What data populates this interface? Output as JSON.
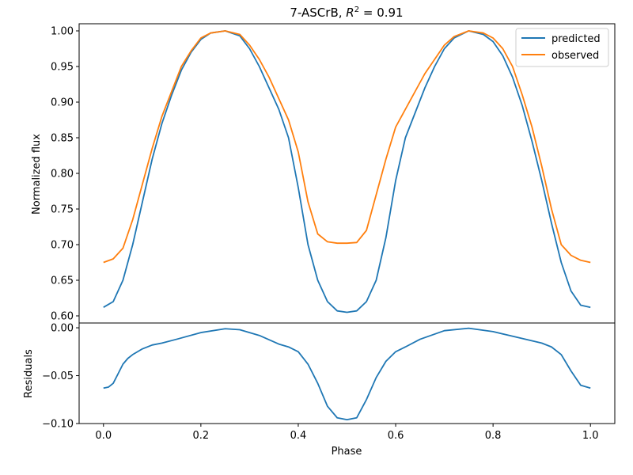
{
  "chart_data": {
    "type": "line",
    "title": "7-ASCrB, R² = 0.91",
    "title_parts": {
      "prefix": "7-ASCrB, ",
      "variable": "R",
      "superscript": "2",
      "suffix": " = 0.91"
    },
    "xlabel": "Phase",
    "xlim": [
      -0.05,
      1.05
    ],
    "x_ticks": [
      0.0,
      0.2,
      0.4,
      0.6,
      0.8,
      1.0
    ],
    "x_tick_labels": [
      "0.0",
      "0.2",
      "0.4",
      "0.6",
      "0.8",
      "1.0"
    ],
    "grid": false,
    "legend_location": "upper-right",
    "colors": {
      "predicted": "#1f77b4",
      "observed": "#ff7f0e",
      "residuals": "#1f77b4"
    },
    "panels": [
      {
        "name": "flux",
        "ylabel": "Normalized flux",
        "ylim": [
          0.59,
          1.01
        ],
        "y_ticks": [
          0.6,
          0.65,
          0.7,
          0.75,
          0.8,
          0.85,
          0.9,
          0.95,
          1.0
        ],
        "y_tick_labels": [
          "0.60",
          "0.65",
          "0.70",
          "0.75",
          "0.80",
          "0.85",
          "0.90",
          "0.95",
          "1.00"
        ],
        "series": [
          {
            "name": "predicted",
            "points": [
              [
                0.0,
                0.612
              ],
              [
                0.02,
                0.62
              ],
              [
                0.04,
                0.65
              ],
              [
                0.06,
                0.7
              ],
              [
                0.08,
                0.76
              ],
              [
                0.1,
                0.82
              ],
              [
                0.12,
                0.87
              ],
              [
                0.14,
                0.91
              ],
              [
                0.16,
                0.945
              ],
              [
                0.18,
                0.97
              ],
              [
                0.2,
                0.988
              ],
              [
                0.22,
                0.997
              ],
              [
                0.25,
                1.0
              ],
              [
                0.28,
                0.993
              ],
              [
                0.3,
                0.975
              ],
              [
                0.32,
                0.95
              ],
              [
                0.34,
                0.92
              ],
              [
                0.36,
                0.89
              ],
              [
                0.38,
                0.85
              ],
              [
                0.4,
                0.78
              ],
              [
                0.42,
                0.7
              ],
              [
                0.44,
                0.65
              ],
              [
                0.46,
                0.62
              ],
              [
                0.48,
                0.607
              ],
              [
                0.5,
                0.605
              ],
              [
                0.52,
                0.607
              ],
              [
                0.54,
                0.62
              ],
              [
                0.56,
                0.65
              ],
              [
                0.58,
                0.71
              ],
              [
                0.6,
                0.79
              ],
              [
                0.62,
                0.85
              ],
              [
                0.64,
                0.885
              ],
              [
                0.66,
                0.92
              ],
              [
                0.68,
                0.95
              ],
              [
                0.7,
                0.975
              ],
              [
                0.72,
                0.99
              ],
              [
                0.75,
                1.0
              ],
              [
                0.78,
                0.995
              ],
              [
                0.8,
                0.985
              ],
              [
                0.82,
                0.965
              ],
              [
                0.84,
                0.935
              ],
              [
                0.86,
                0.895
              ],
              [
                0.88,
                0.845
              ],
              [
                0.9,
                0.79
              ],
              [
                0.92,
                0.73
              ],
              [
                0.94,
                0.675
              ],
              [
                0.96,
                0.635
              ],
              [
                0.98,
                0.615
              ],
              [
                1.0,
                0.612
              ]
            ]
          },
          {
            "name": "observed",
            "points": [
              [
                0.0,
                0.675
              ],
              [
                0.02,
                0.68
              ],
              [
                0.04,
                0.695
              ],
              [
                0.06,
                0.735
              ],
              [
                0.08,
                0.785
              ],
              [
                0.1,
                0.835
              ],
              [
                0.12,
                0.88
              ],
              [
                0.14,
                0.915
              ],
              [
                0.16,
                0.95
              ],
              [
                0.18,
                0.972
              ],
              [
                0.2,
                0.99
              ],
              [
                0.22,
                0.997
              ],
              [
                0.25,
                1.0
              ],
              [
                0.28,
                0.995
              ],
              [
                0.3,
                0.98
              ],
              [
                0.32,
                0.96
              ],
              [
                0.34,
                0.935
              ],
              [
                0.36,
                0.905
              ],
              [
                0.38,
                0.875
              ],
              [
                0.4,
                0.83
              ],
              [
                0.42,
                0.76
              ],
              [
                0.44,
                0.715
              ],
              [
                0.46,
                0.704
              ],
              [
                0.48,
                0.702
              ],
              [
                0.5,
                0.702
              ],
              [
                0.52,
                0.703
              ],
              [
                0.54,
                0.72
              ],
              [
                0.56,
                0.77
              ],
              [
                0.58,
                0.82
              ],
              [
                0.6,
                0.865
              ],
              [
                0.62,
                0.89
              ],
              [
                0.64,
                0.915
              ],
              [
                0.66,
                0.94
              ],
              [
                0.68,
                0.96
              ],
              [
                0.7,
                0.98
              ],
              [
                0.72,
                0.992
              ],
              [
                0.75,
                1.0
              ],
              [
                0.78,
                0.997
              ],
              [
                0.8,
                0.99
              ],
              [
                0.82,
                0.975
              ],
              [
                0.84,
                0.95
              ],
              [
                0.86,
                0.91
              ],
              [
                0.88,
                0.865
              ],
              [
                0.9,
                0.81
              ],
              [
                0.92,
                0.75
              ],
              [
                0.94,
                0.7
              ],
              [
                0.96,
                0.685
              ],
              [
                0.98,
                0.678
              ],
              [
                1.0,
                0.675
              ]
            ]
          }
        ]
      },
      {
        "name": "residuals",
        "ylabel": "Residuals",
        "ylim": [
          -0.1,
          0.005
        ],
        "y_ticks": [
          -0.1,
          -0.05,
          0.0
        ],
        "y_tick_labels": [
          "−0.10",
          "−0.05",
          "0.00"
        ],
        "series": [
          {
            "name": "residuals",
            "points": [
              [
                0.0,
                -0.063
              ],
              [
                0.01,
                -0.062
              ],
              [
                0.02,
                -0.058
              ],
              [
                0.03,
                -0.048
              ],
              [
                0.04,
                -0.038
              ],
              [
                0.05,
                -0.032
              ],
              [
                0.06,
                -0.028
              ],
              [
                0.08,
                -0.022
              ],
              [
                0.1,
                -0.018
              ],
              [
                0.12,
                -0.016
              ],
              [
                0.15,
                -0.012
              ],
              [
                0.2,
                -0.005
              ],
              [
                0.25,
                -0.001
              ],
              [
                0.28,
                -0.002
              ],
              [
                0.32,
                -0.008
              ],
              [
                0.36,
                -0.017
              ],
              [
                0.38,
                -0.02
              ],
              [
                0.4,
                -0.025
              ],
              [
                0.42,
                -0.038
              ],
              [
                0.44,
                -0.058
              ],
              [
                0.46,
                -0.082
              ],
              [
                0.48,
                -0.094
              ],
              [
                0.5,
                -0.096
              ],
              [
                0.52,
                -0.094
              ],
              [
                0.54,
                -0.075
              ],
              [
                0.56,
                -0.052
              ],
              [
                0.58,
                -0.035
              ],
              [
                0.6,
                -0.025
              ],
              [
                0.62,
                -0.02
              ],
              [
                0.65,
                -0.012
              ],
              [
                0.7,
                -0.003
              ],
              [
                0.75,
                -0.0005
              ],
              [
                0.8,
                -0.004
              ],
              [
                0.85,
                -0.01
              ],
              [
                0.9,
                -0.016
              ],
              [
                0.92,
                -0.02
              ],
              [
                0.94,
                -0.028
              ],
              [
                0.96,
                -0.045
              ],
              [
                0.98,
                -0.06
              ],
              [
                1.0,
                -0.063
              ]
            ]
          }
        ]
      }
    ]
  }
}
